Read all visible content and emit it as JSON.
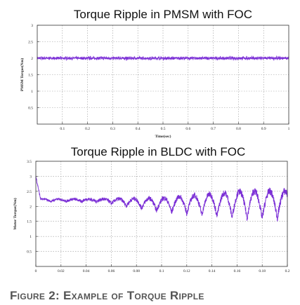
{
  "chart_data": [
    {
      "type": "line",
      "title": "Torque Ripple in PMSM with FOC",
      "xlabel": "Time(sec)",
      "ylabel": "PMSM Torque(Nm)",
      "xlim": [
        0,
        1
      ],
      "ylim": [
        0,
        3
      ],
      "xticks": [
        "0.1",
        "0.2",
        "0.3",
        "0.4",
        "0.5",
        "0.6",
        "0.7",
        "0.8",
        "0.9",
        "1"
      ],
      "yticks": [
        "0.5",
        "1",
        "1.5",
        "2",
        "2.5",
        "3"
      ],
      "grid": true,
      "series": [
        {
          "color": "#7b2fd6",
          "mean": 2.0,
          "ripple_amplitude": 0.05,
          "x_start": 0,
          "x_end": 1
        }
      ]
    },
    {
      "type": "line",
      "title": "Torque Ripple in BLDC with FOC",
      "xlabel": "",
      "ylabel": "Motor Torque(Nm)",
      "xlim": [
        0,
        0.2
      ],
      "ylim": [
        0,
        3.5
      ],
      "xticks": [
        "0",
        "0.02",
        "0.04",
        "0.06",
        "0.08",
        "0.1",
        "0.12",
        "0.14",
        "0.16",
        "0.18",
        "0.2"
      ],
      "yticks": [
        "0.5",
        "1",
        "1.5",
        "2",
        "2.5",
        "3",
        "3.5"
      ],
      "grid": true,
      "series": [
        {
          "color": "#7b2fd6",
          "mean": 2.2,
          "initial_peak": 3.0,
          "ripple_start": 0.05,
          "ripple_amplitude_end": 0.45,
          "ripple_period": 0.012,
          "x_start": 0,
          "x_end": 0.2
        }
      ]
    }
  ],
  "caption": "Figure 2: Example of Torque Ripple"
}
